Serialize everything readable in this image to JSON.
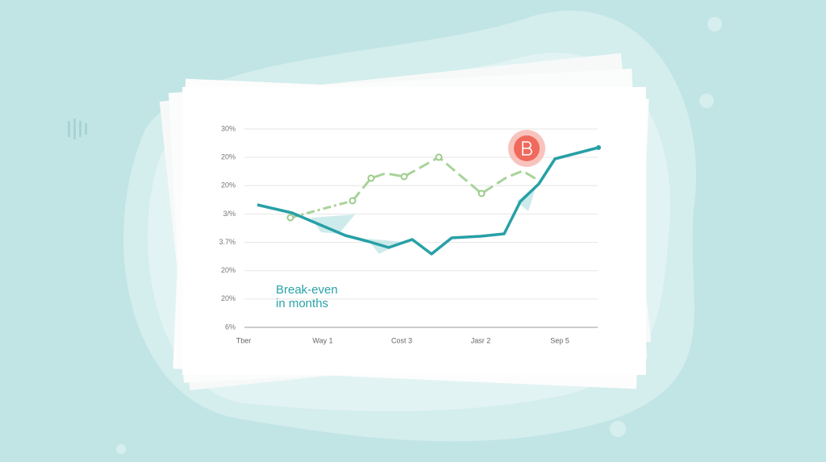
{
  "illustration": {
    "y_axis_labels": [
      "30%",
      "20%",
      "20%",
      "3/%",
      "3.7%",
      "20%",
      "20%",
      "6%"
    ],
    "x_axis_labels": [
      "Tber",
      "Way 1",
      "Cost 3",
      "Jasr 2",
      "Sep 5"
    ],
    "caption": [
      "Break-even",
      "in months"
    ]
  }
}
